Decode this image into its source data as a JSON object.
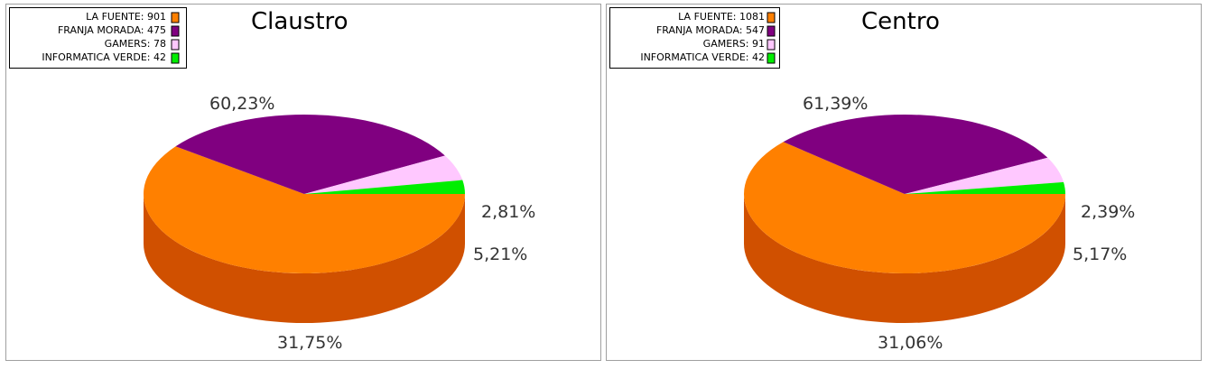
{
  "chart_data": [
    {
      "type": "pie",
      "title": "Claustro",
      "legend_position": "top-left",
      "slices": [
        {
          "name": "LA FUENTE",
          "value": 901,
          "percent": 60.23,
          "legend_label": "LA FUENTE: 901",
          "percent_label": "60,23%",
          "color": "#ff8000",
          "side_color": "#d05000"
        },
        {
          "name": "FRANJA MORADA",
          "value": 475,
          "percent": 31.75,
          "legend_label": "FRANJA MORADA: 475",
          "percent_label": "31,75%",
          "color": "#800080",
          "side_color": "#50004c"
        },
        {
          "name": "GAMERS",
          "value": 78,
          "percent": 5.21,
          "legend_label": "GAMERS: 78",
          "percent_label": "5,21%",
          "color": "#ffc8ff",
          "side_color": "#d098d0"
        },
        {
          "name": "INFORMATICA VERDE",
          "value": 42,
          "percent": 2.81,
          "legend_label": "INFORMATICA VERDE: 42",
          "percent_label": "2,81%",
          "color": "#00ee00",
          "side_color": "#00b000"
        }
      ]
    },
    {
      "type": "pie",
      "title": "Centro",
      "legend_position": "top-left",
      "slices": [
        {
          "name": "LA FUENTE",
          "value": 1081,
          "percent": 61.39,
          "legend_label": "LA FUENTE: 1081",
          "percent_label": "61,39%",
          "color": "#ff8000",
          "side_color": "#d05000"
        },
        {
          "name": "FRANJA MORADA",
          "value": 547,
          "percent": 31.06,
          "legend_label": "FRANJA MORADA: 547",
          "percent_label": "31,06%",
          "color": "#800080",
          "side_color": "#50004c"
        },
        {
          "name": "GAMERS",
          "value": 91,
          "percent": 5.17,
          "legend_label": "GAMERS: 91",
          "percent_label": "5,17%",
          "color": "#ffc8ff",
          "side_color": "#d098d0"
        },
        {
          "name": "INFORMATICA VERDE",
          "value": 42,
          "percent": 2.39,
          "legend_label": "INFORMATICA VERDE: 42",
          "percent_label": "2,39%",
          "color": "#00ee00",
          "side_color": "#00b000"
        }
      ]
    }
  ]
}
